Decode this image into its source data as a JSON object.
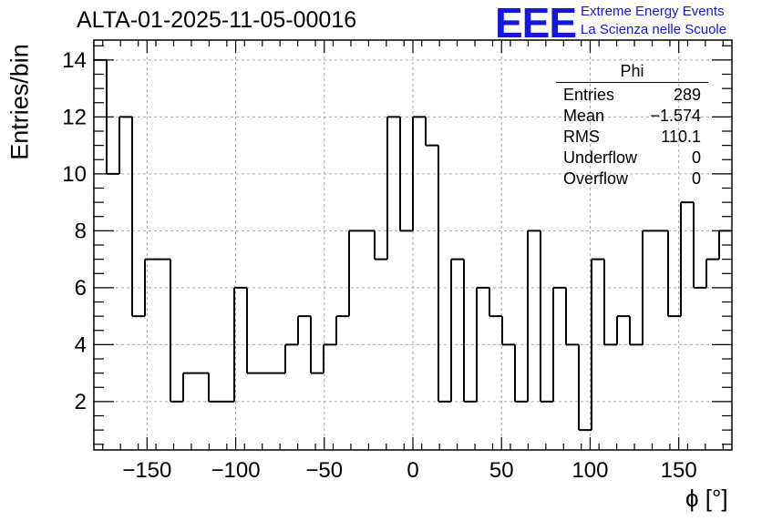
{
  "title": "ALTA-01-2025-11-05-00016",
  "logo": {
    "text": "EEE",
    "line1": "Extreme Energy Events",
    "line2": "La Scienza nelle Scuole",
    "color": "#1515e0"
  },
  "stats": {
    "name": "Phi",
    "rows": [
      {
        "label": "Entries",
        "value": "289"
      },
      {
        "label": "Mean",
        "value": "−1.574"
      },
      {
        "label": "RMS",
        "value": "110.1"
      },
      {
        "label": "Underflow",
        "value": "0"
      },
      {
        "label": "Overflow",
        "value": "0"
      }
    ]
  },
  "chart_data": {
    "type": "histogram",
    "title": "ALTA-01-2025-11-05-00016",
    "xlabel": "ϕ [°]",
    "ylabel": "Entries/bin",
    "xlim": [
      -180,
      180
    ],
    "ylim": [
      0.3,
      14.7
    ],
    "grid": true,
    "bin_width": 7.2,
    "bin_low_edges": [
      -180,
      -172.8,
      -165.6,
      -158.4,
      -151.2,
      -144,
      -136.8,
      -129.6,
      -122.4,
      -115.2,
      -108,
      -100.8,
      -93.6,
      -86.4,
      -79.2,
      -72,
      -64.8,
      -57.6,
      -50.4,
      -43.2,
      -36,
      -28.8,
      -21.6,
      -14.4,
      -7.2,
      0,
      7.2,
      14.4,
      21.6,
      28.8,
      36,
      43.2,
      50.4,
      57.6,
      64.8,
      72,
      79.2,
      86.4,
      93.6,
      100.8,
      108,
      115.2,
      122.4,
      129.6,
      136.8,
      144,
      151.2,
      158.4,
      165.6,
      172.8
    ],
    "values": [
      14,
      10,
      12,
      5,
      7,
      7,
      2,
      3,
      3,
      2,
      2,
      6,
      3,
      3,
      3,
      4,
      5,
      3,
      4,
      5,
      8,
      8,
      7,
      12,
      8,
      12,
      11,
      2,
      7,
      2,
      6,
      5,
      4,
      2,
      8,
      2,
      6,
      4,
      1,
      7,
      4,
      5,
      4,
      8,
      8,
      5,
      9,
      6,
      7,
      8
    ],
    "xticks": [
      -150,
      -100,
      -50,
      0,
      50,
      100,
      150
    ],
    "xtick_labels": [
      "−150",
      "−100",
      "−50",
      "0",
      "50",
      "100",
      "150"
    ],
    "yticks": [
      2,
      4,
      6,
      8,
      10,
      12,
      14
    ],
    "ytick_labels": [
      "2",
      "4",
      "6",
      "8",
      "10",
      "12",
      "14"
    ]
  }
}
